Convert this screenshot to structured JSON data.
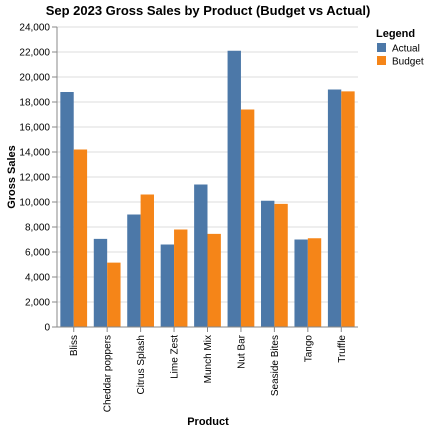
{
  "chart_data": {
    "type": "bar",
    "title": "Sep 2023 Gross Sales by Product (Budget vs Actual)",
    "xlabel": "Product",
    "ylabel": "Gross Sales",
    "ylim": [
      0,
      24000
    ],
    "yticks": [
      0,
      2000,
      4000,
      6000,
      8000,
      10000,
      12000,
      14000,
      16000,
      18000,
      20000,
      22000,
      24000
    ],
    "ytick_labels": [
      "0",
      "2,000",
      "4,000",
      "6,000",
      "8,000",
      "10,000",
      "12,000",
      "14,000",
      "16,000",
      "18,000",
      "20,000",
      "22,000",
      "24,000"
    ],
    "grid": true,
    "legend_title": "Legend",
    "legend_position": "top-right",
    "categories": [
      "Bliss",
      "Cheddar poppers",
      "Citrus Splash",
      "Lime Zest",
      "Munch Mix",
      "Nut Bar",
      "Seaside Bites",
      "Tango",
      "Truffle"
    ],
    "series": [
      {
        "name": "Actual",
        "color": "#4c78a8",
        "values": [
          18800,
          7050,
          9000,
          6600,
          11400,
          22100,
          10100,
          7000,
          19000
        ]
      },
      {
        "name": "Budget",
        "color": "#f58518",
        "values": [
          14200,
          5150,
          10600,
          7800,
          7450,
          17400,
          9850,
          7100,
          18850
        ]
      }
    ]
  }
}
